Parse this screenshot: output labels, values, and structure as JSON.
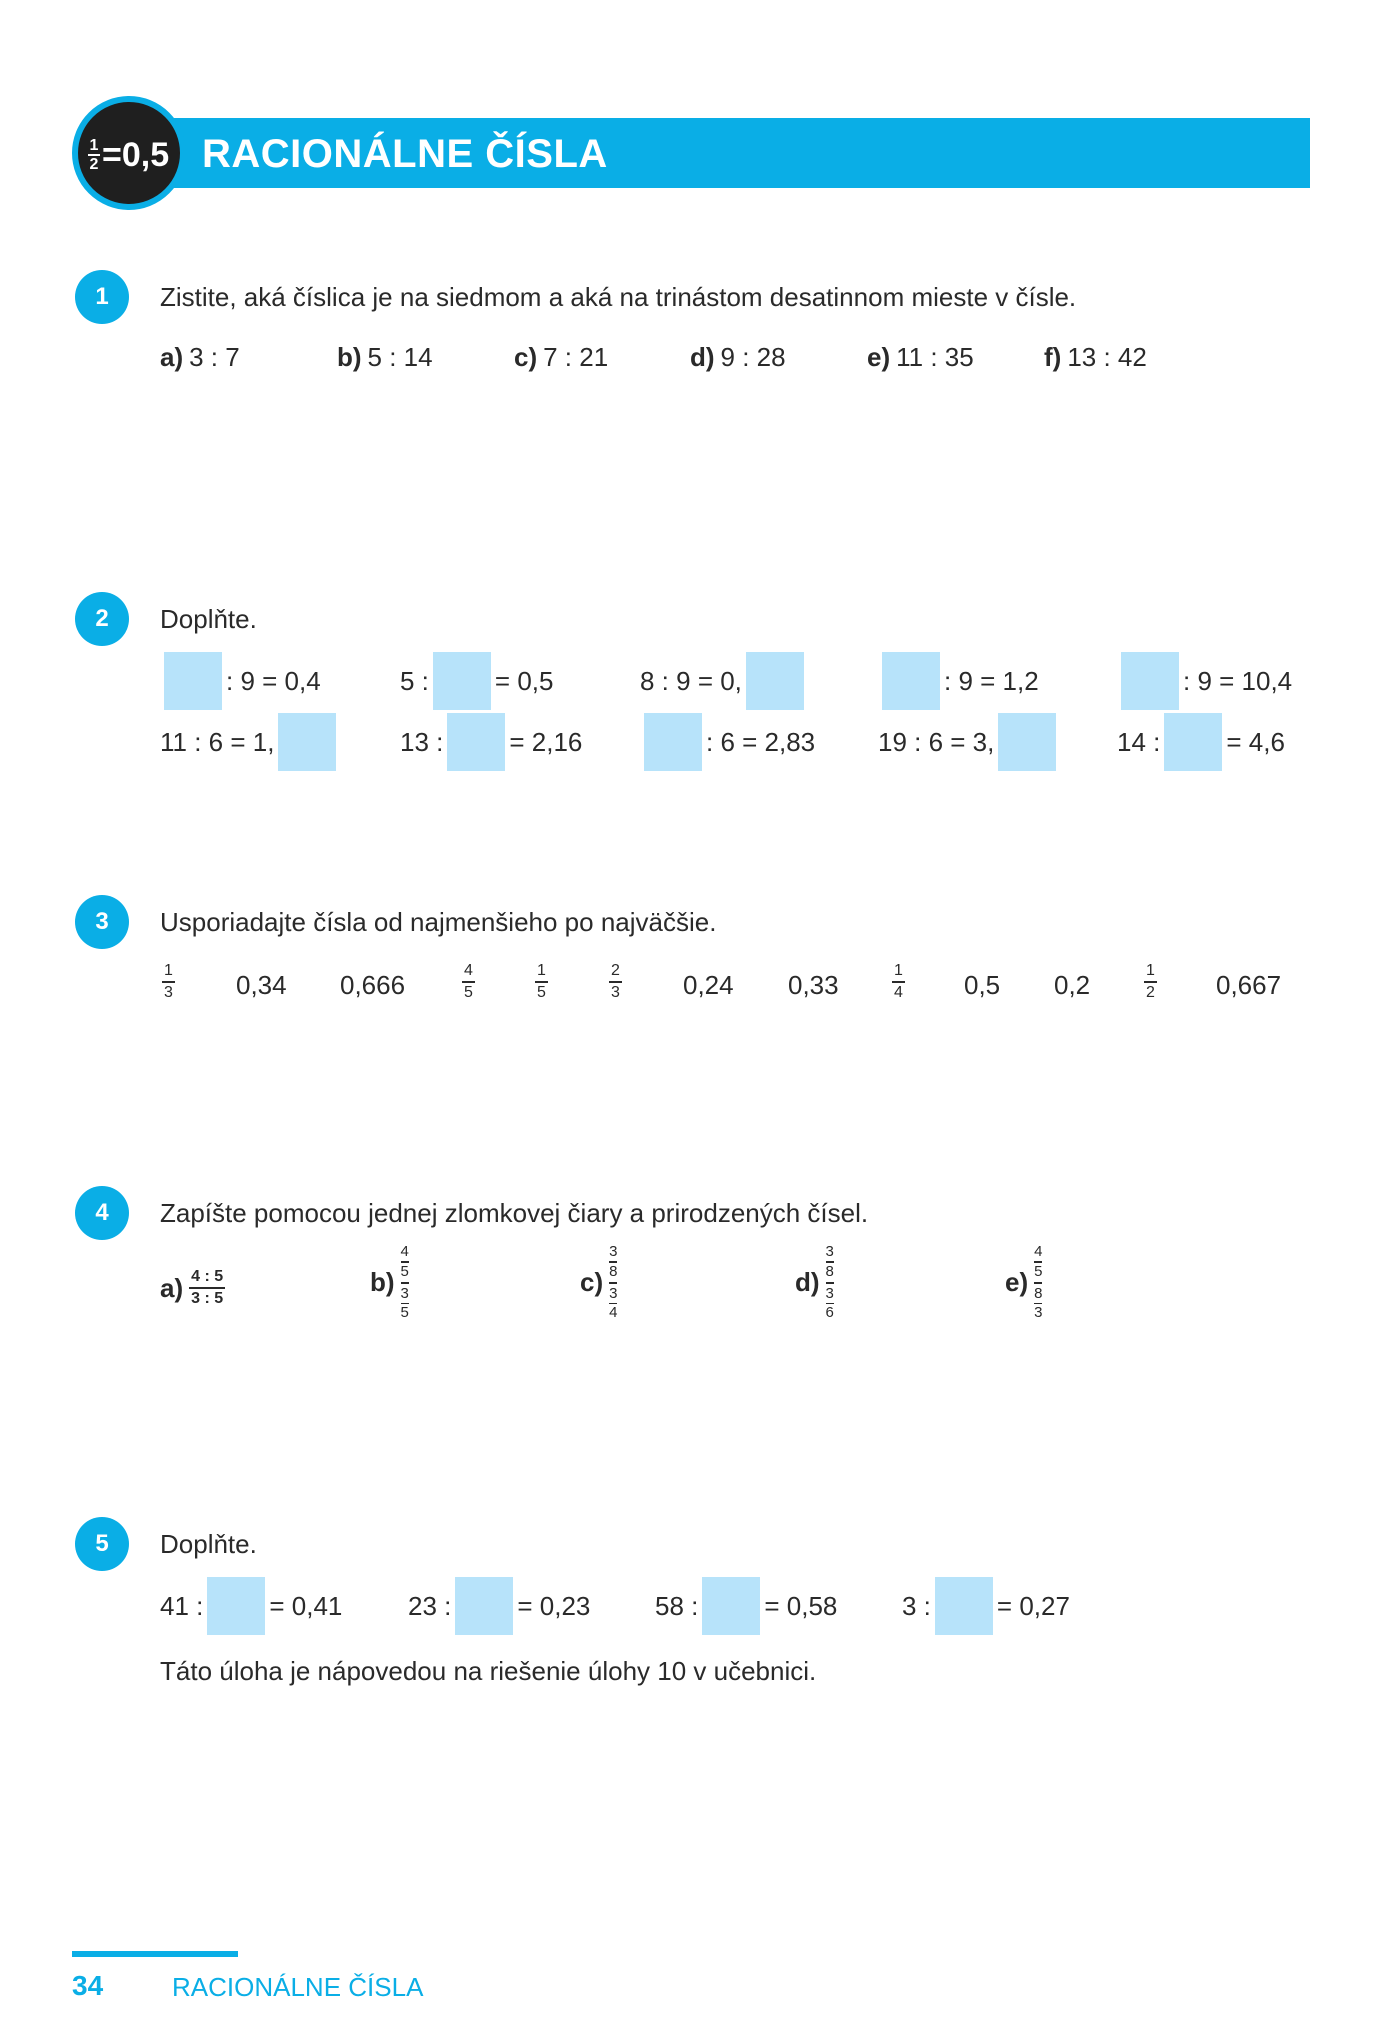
{
  "header": {
    "badge": {
      "numerator": "1",
      "denominator": "2",
      "rest": "=0,5"
    },
    "title": "RACIONÁLNE ČÍSLA"
  },
  "tasks": [
    {
      "number": "1",
      "text": "Zistite, aká číslica je na siedmom a aká na trinástom desatinnom mieste v čísle.",
      "items": [
        {
          "label": "a)",
          "expr": "3 : 7"
        },
        {
          "label": "b)",
          "expr": "5 : 14"
        },
        {
          "label": "c)",
          "expr": "7 : 21"
        },
        {
          "label": "d)",
          "expr": "9 : 28"
        },
        {
          "label": "e)",
          "expr": "11 : 35"
        },
        {
          "label": "f)",
          "expr": "13 : 42"
        }
      ]
    },
    {
      "number": "2",
      "text": "Doplňte.",
      "row1": [
        {
          "before": "",
          "after": ": 9 = 0,4"
        },
        {
          "before": "5 :",
          "after": "= 0,5"
        },
        {
          "before": "8 : 9 = 0,",
          "after": ""
        },
        {
          "before": "",
          "after": ": 9 = 1,2"
        },
        {
          "before": "",
          "after": ": 9 = 10,4"
        }
      ],
      "row2": [
        {
          "before": "11 : 6 = 1,",
          "after": ""
        },
        {
          "before": "13 :",
          "after": "= 2,16"
        },
        {
          "before": "",
          "after": ": 6 = 2,83"
        },
        {
          "before": "19 : 6 = 3,",
          "after": ""
        },
        {
          "before": "14 :",
          "after": "= 4,6"
        }
      ]
    },
    {
      "number": "3",
      "text": "Usporiadajte čísla od najmenšieho po najväčšie.",
      "values": [
        {
          "type": "frac",
          "n": "1",
          "d": "3"
        },
        {
          "type": "num",
          "v": "0,34"
        },
        {
          "type": "num",
          "v": "0,666"
        },
        {
          "type": "frac",
          "n": "4",
          "d": "5"
        },
        {
          "type": "frac",
          "n": "1",
          "d": "5"
        },
        {
          "type": "frac",
          "n": "2",
          "d": "3"
        },
        {
          "type": "num",
          "v": "0,24"
        },
        {
          "type": "num",
          "v": "0,33"
        },
        {
          "type": "frac",
          "n": "1",
          "d": "4"
        },
        {
          "type": "num",
          "v": "0,5"
        },
        {
          "type": "num",
          "v": "0,2"
        },
        {
          "type": "frac",
          "n": "1",
          "d": "2"
        },
        {
          "type": "num",
          "v": "0,667"
        }
      ]
    },
    {
      "number": "4",
      "text": "Zapíšte pomocou jednej zlomkovej čiary a prirodzených čísel.",
      "items": [
        {
          "label": "a)",
          "top": "4 : 5",
          "bottom": "3 : 5"
        },
        {
          "label": "b)",
          "top": [
            "4",
            "5"
          ],
          "bottom": [
            "3",
            "5"
          ]
        },
        {
          "label": "c)",
          "top": [
            "3",
            "8"
          ],
          "bottom": [
            "3",
            "4"
          ]
        },
        {
          "label": "d)",
          "top": [
            "3",
            "8"
          ],
          "bottom": [
            "3",
            "6"
          ]
        },
        {
          "label": "e)",
          "top": [
            "4",
            "5"
          ],
          "bottom": [
            "8",
            "3"
          ]
        }
      ]
    },
    {
      "number": "5",
      "text": "Doplňte.",
      "items": [
        {
          "before": "41 :",
          "after": "= 0,41"
        },
        {
          "before": "23 :",
          "after": "= 0,23"
        },
        {
          "before": "58 :",
          "after": "= 0,58"
        },
        {
          "before": "3 :",
          "after": "= 0,27"
        }
      ],
      "note": "Táto úloha je nápovedou na riešenie úlohy 10 v učebnici."
    }
  ],
  "footer": {
    "page": "34",
    "title": "RACIONÁLNE ČÍSLA"
  }
}
